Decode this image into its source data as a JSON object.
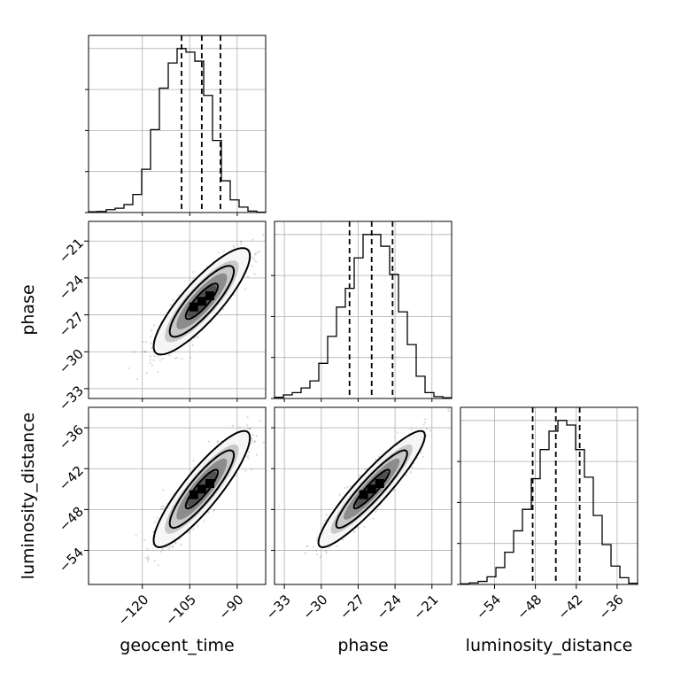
{
  "chart_data": {
    "type": "corner",
    "parameters": [
      "geocent_time",
      "phase",
      "luminosity_distance"
    ],
    "axis_labels": {
      "geocent_time": "geocent_time",
      "phase": "phase",
      "luminosity_distance": "luminosity_distance"
    },
    "ranges": {
      "geocent_time": [
        -137,
        -81
      ],
      "phase": [
        -33.8,
        -19.4
      ],
      "luminosity_distance": [
        -59,
        -33
      ]
    },
    "ticks": {
      "geocent_time": [
        -120,
        -105,
        -90
      ],
      "phase": [
        -33,
        -30,
        -27,
        -24,
        -21
      ],
      "luminosity_distance": [
        -54,
        -48,
        -42,
        -36
      ]
    },
    "tick_labels": {
      "geocent_time": [
        "−120",
        "−105",
        "−90"
      ],
      "phase": [
        "−33",
        "−30",
        "−27",
        "−24",
        "−21"
      ],
      "luminosity_distance": [
        "−54",
        "−48",
        "−42",
        "−36"
      ]
    },
    "quantiles": {
      "geocent_time": [
        -107.6,
        -101.2,
        -95.3
      ],
      "phase": [
        -27.7,
        -25.9,
        -24.2
      ],
      "luminosity_distance": [
        -48.4,
        -45.0,
        -41.5
      ]
    },
    "histograms": {
      "geocent_time": {
        "bin_edges": [
          -137,
          -134.2,
          -131.4,
          -128.6,
          -125.8,
          -123,
          -120.2,
          -117.4,
          -114.6,
          -111.8,
          -109,
          -106.2,
          -103.4,
          -100.6,
          -97.8,
          -95,
          -92.2,
          -89.4,
          -86.6,
          -83.8,
          -81
        ],
        "counts": [
          2,
          3,
          8,
          12,
          22,
          50,
          120,
          230,
          345,
          415,
          455,
          445,
          420,
          325,
          200,
          88,
          35,
          15,
          4,
          1
        ]
      },
      "phase": {
        "bin_edges": [
          -33.8,
          -33.08,
          -32.36,
          -31.64,
          -30.92,
          -30.2,
          -29.48,
          -28.76,
          -28.04,
          -27.32,
          -26.6,
          -25.88,
          -25.16,
          -24.44,
          -23.72,
          -23,
          -22.28,
          -21.56,
          -20.84,
          -20.12,
          -19.4
        ],
        "counts": [
          5,
          15,
          25,
          45,
          75,
          150,
          265,
          390,
          470,
          600,
          700,
          700,
          650,
          530,
          370,
          230,
          95,
          25,
          8,
          3
        ]
      },
      "luminosity_distance": {
        "bin_edges": [
          -59,
          -57.7,
          -56.4,
          -55.1,
          -53.8,
          -52.5,
          -51.2,
          -49.9,
          -48.6,
          -47.3,
          -46,
          -44.7,
          -43.4,
          -42.1,
          -40.8,
          -39.5,
          -38.2,
          -36.9,
          -35.6,
          -34.3,
          -33
        ],
        "counts": [
          2,
          5,
          10,
          25,
          55,
          105,
          175,
          245,
          345,
          440,
          500,
          535,
          520,
          440,
          350,
          225,
          130,
          60,
          22,
          4
        ]
      }
    },
    "pair_correlations": {
      "phase|geocent_time": 0.85,
      "luminosity_distance|geocent_time": 0.88,
      "luminosity_distance|phase": 0.92
    },
    "grid": true
  }
}
